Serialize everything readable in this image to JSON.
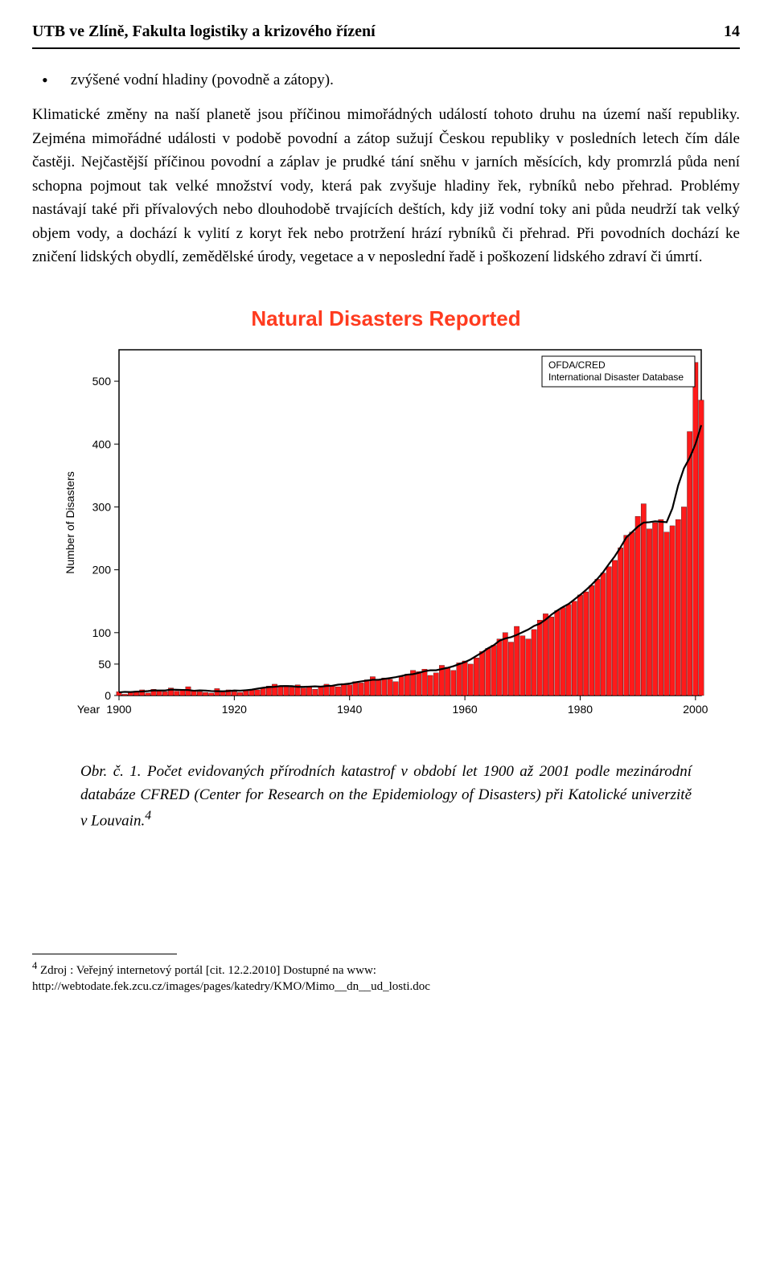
{
  "header": {
    "title": "UTB ve Zlíně, Fakulta logistiky a krizového řízení",
    "page": "14"
  },
  "bullet": {
    "text": "zvýšené vodní hladiny (povodně a zátopy)."
  },
  "paragraph": "Klimatické změny na naší planetě jsou příčinou mimořádných událostí tohoto druhu na území naší republiky. Zejména mimořádné události v podobě povodní a zátop sužují Českou republiky v posledních letech čím dále častěji. Nejčastější příčinou povodní a záplav je prudké tání sněhu v jarních měsících, kdy promrzlá půda není schopna pojmout tak velké množství vody, která pak zvyšuje hladiny řek, rybníků nebo přehrad. Problémy nastávají také při přívalových nebo dlouhodobě trvajících deštích, kdy již vodní toky ani půda neudrží tak velký objem vody, a dochází k vylití z koryt řek nebo protržení hrází rybníků či přehrad. Při povodních dochází ke zničení lidských obydlí, zemědělské úrody, vegetace a v neposlední řadě i poškození lidského zdraví či úmrtí.",
  "chart": {
    "type": "bar",
    "title": "Natural Disasters Reported",
    "ylabel": "Number of Disasters",
    "xlabel": "Year",
    "ylim": [
      0,
      550
    ],
    "yticks": [
      0,
      50,
      100,
      200,
      300,
      400,
      500
    ],
    "xticks": [
      1900,
      1920,
      1940,
      1960,
      1980,
      2000
    ],
    "x_start": 1900,
    "x_end": 2001,
    "bar_color": "#ff1a1a",
    "bar_border": "#000000",
    "line_color": "#000000",
    "axis_color": "#000000",
    "background": "#ffffff",
    "legend_lines": [
      "OFDA/CRED",
      "International Disaster Database"
    ],
    "values": [
      6,
      2,
      5,
      7,
      9,
      4,
      10,
      8,
      6,
      12,
      7,
      9,
      14,
      8,
      6,
      5,
      4,
      11,
      7,
      9,
      6,
      5,
      8,
      10,
      9,
      12,
      15,
      18,
      14,
      16,
      13,
      17,
      12,
      14,
      10,
      15,
      18,
      16,
      14,
      19,
      17,
      22,
      20,
      25,
      30,
      24,
      28,
      26,
      22,
      30,
      34,
      40,
      38,
      42,
      32,
      36,
      48,
      45,
      40,
      52,
      55,
      50,
      60,
      70,
      75,
      80,
      90,
      100,
      85,
      110,
      95,
      90,
      105,
      120,
      130,
      125,
      135,
      140,
      145,
      150,
      160,
      165,
      175,
      185,
      195,
      205,
      215,
      235,
      255,
      260,
      285,
      305,
      265,
      275,
      280,
      260,
      270,
      280,
      300,
      420,
      530,
      470
    ]
  },
  "caption_prefix": "Obr. č. 1. ",
  "caption": "Počet evidovaných přírodních katastrof v období let 1900 až 2001 podle mezinárodní databáze CFRED (Center for Research on the Epidemiology of Disasters) při Katolické univerzitě v Louvain.",
  "caption_marker": "4",
  "footnote": {
    "marker": "4",
    "text": "Zdroj : Veřejný internetový portál [cit. 12.2.2010] Dostupné na www:",
    "url": "http://webtodate.fek.zcu.cz/images/pages/katedry/KMO/Mimo__dn__ud_losti.doc"
  }
}
